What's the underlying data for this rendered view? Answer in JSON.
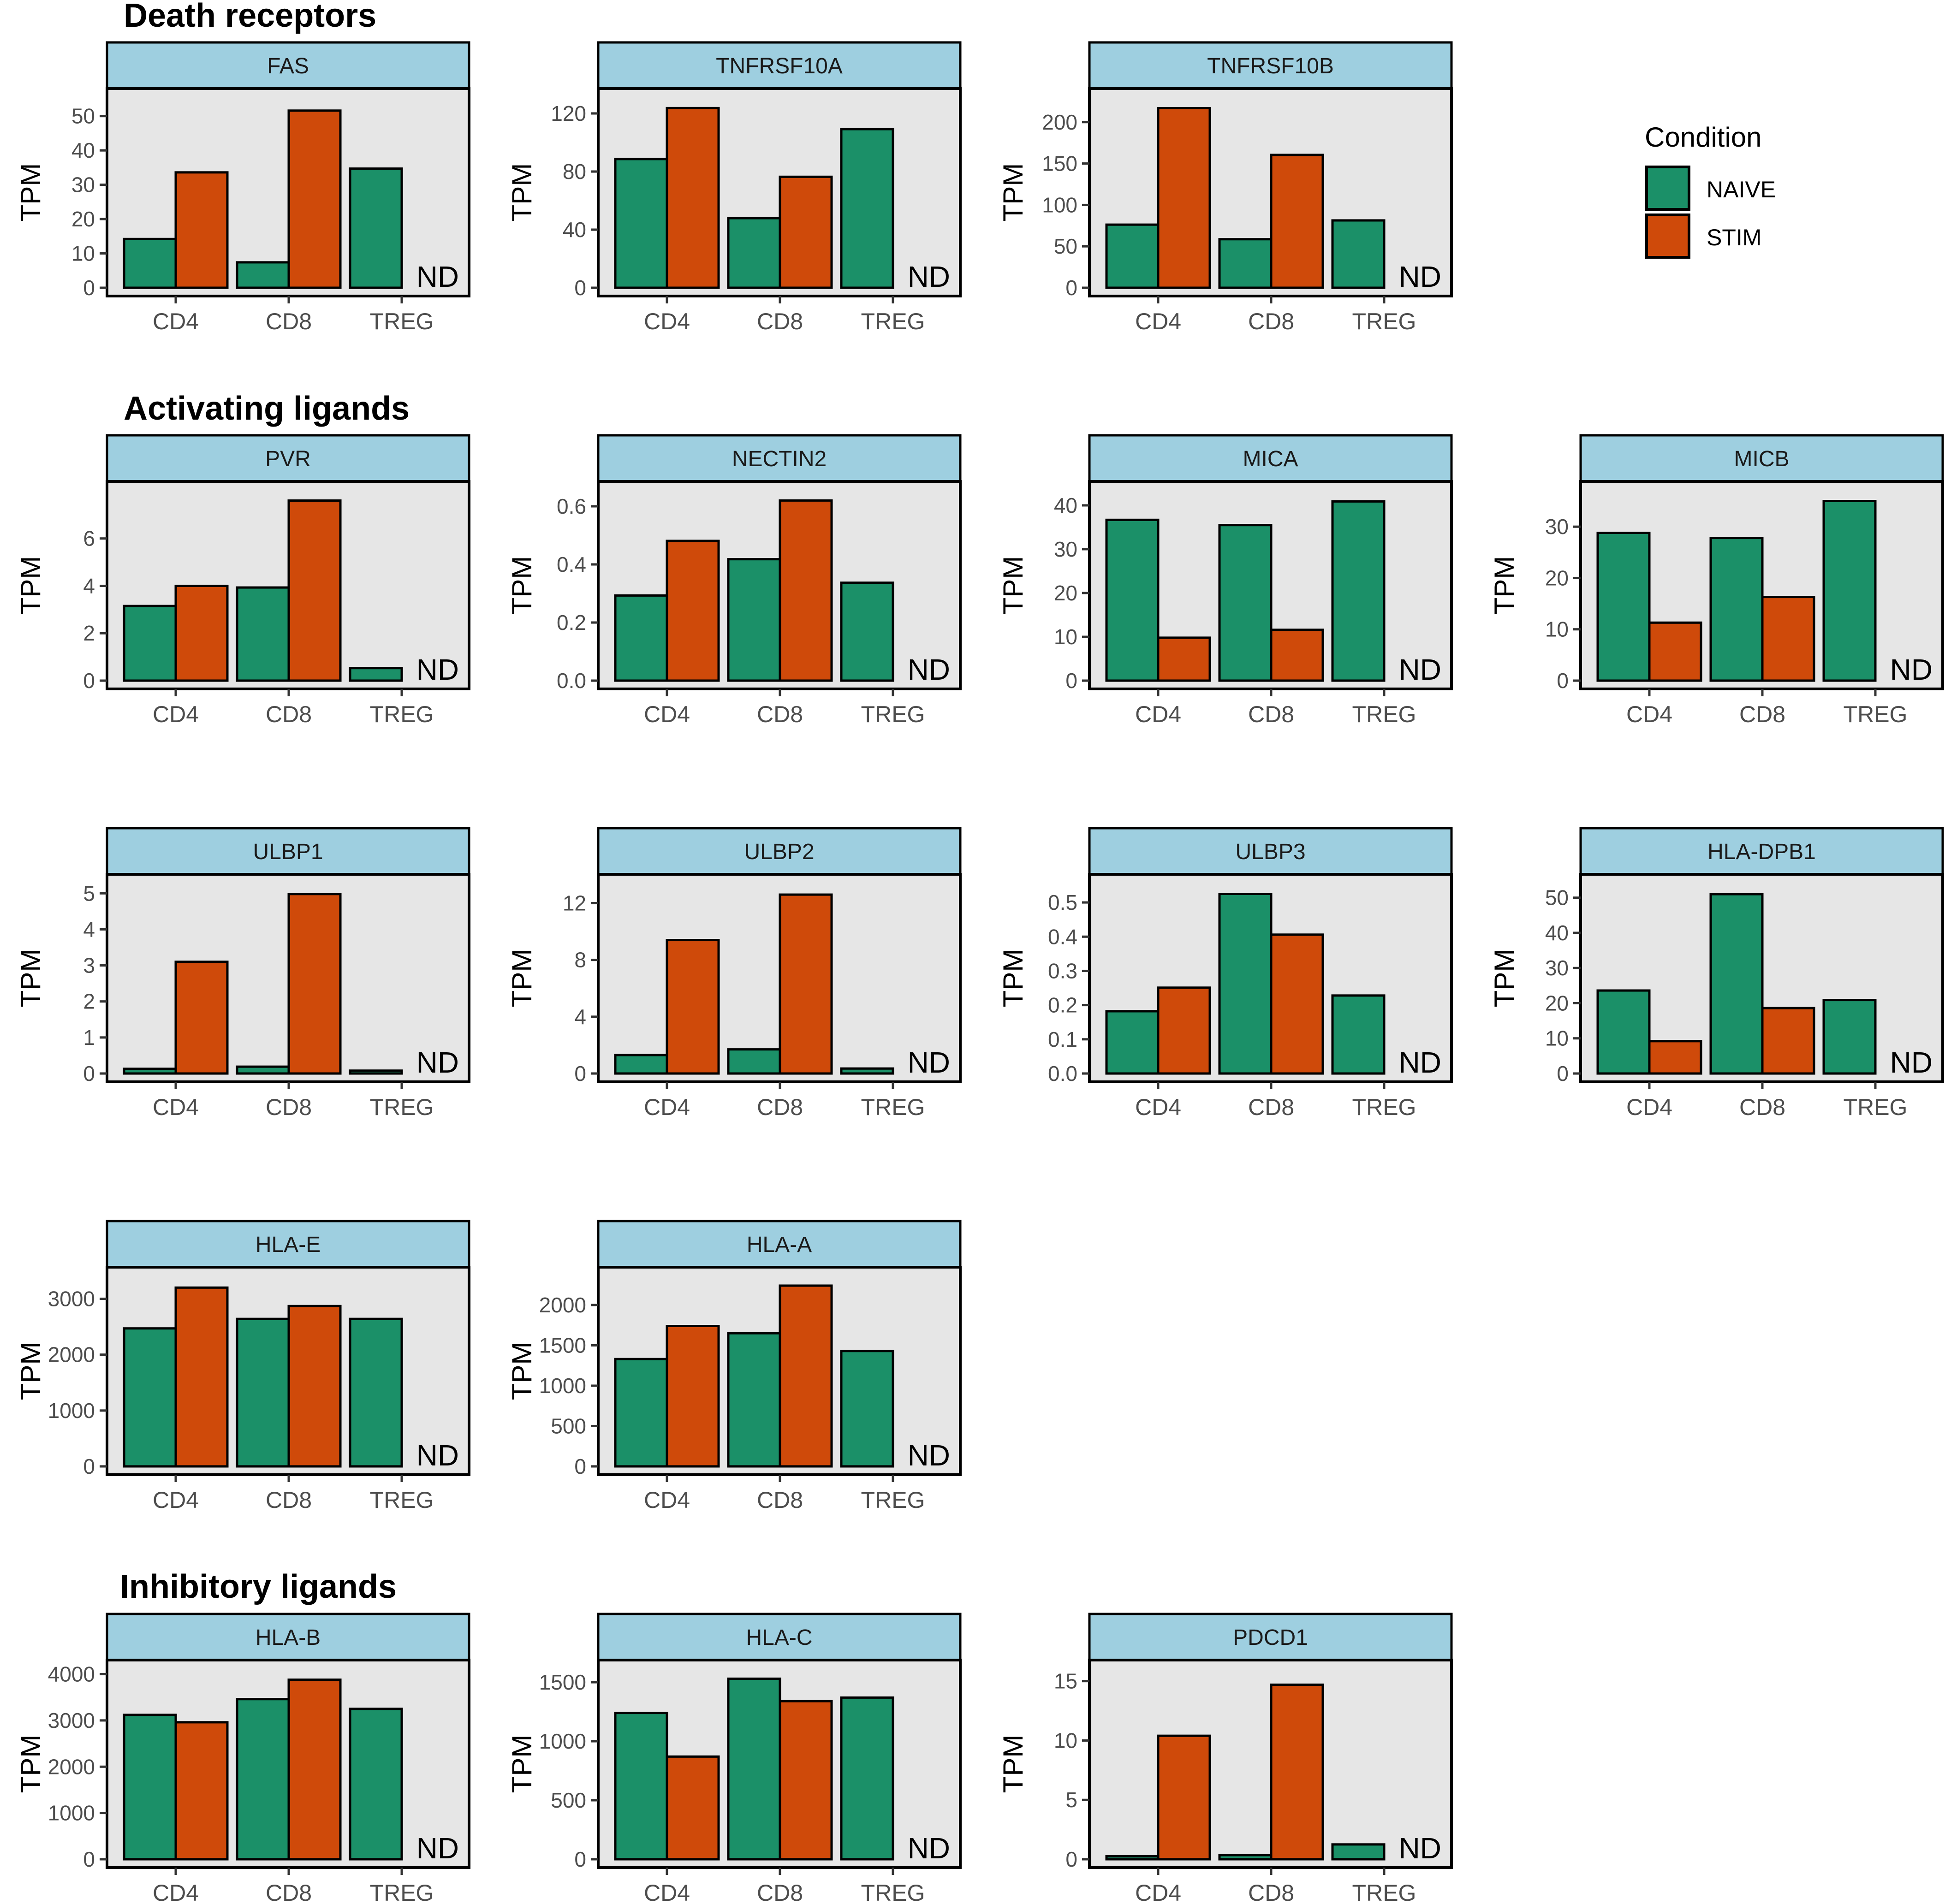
{
  "condition_colors": {
    "NAIVE": "#1b9068",
    "STIM": "#cf4a0a"
  },
  "strip_color": "#9ecfe0",
  "panel_bg": "#e6e6e6",
  "section_titles": [
    "Death receptors",
    "Activating ligands",
    "Inhibitory ligands"
  ],
  "legend": {
    "title": "Condition",
    "entries": [
      "NAIVE",
      "STIM"
    ]
  },
  "nd_label": "ND",
  "chart_data": [
    {
      "type": "bar",
      "title": "FAS",
      "ylabel": "TPM",
      "categories": [
        "CD4",
        "CD8",
        "TREG"
      ],
      "ylim": [
        0,
        55
      ],
      "yticks": [
        0,
        10,
        20,
        30,
        40,
        50
      ],
      "yticklabels": [
        "0",
        "10",
        "20",
        "30",
        "40",
        "50"
      ],
      "series": [
        {
          "name": "NAIVE",
          "values": [
            14.2,
            7.4,
            34.7
          ]
        },
        {
          "name": "STIM",
          "values": [
            33.6,
            51.6,
            null
          ]
        }
      ],
      "annotations": [
        "ND"
      ]
    },
    {
      "type": "bar",
      "title": "TNFRSF10A",
      "ylabel": "TPM",
      "categories": [
        "CD4",
        "CD8",
        "TREG"
      ],
      "ylim": [
        0,
        130
      ],
      "yticks": [
        0,
        40,
        80,
        120
      ],
      "yticklabels": [
        "0",
        "40",
        "80",
        "120"
      ],
      "series": [
        {
          "name": "NAIVE",
          "values": [
            88.6,
            47.9,
            109.2
          ]
        },
        {
          "name": "STIM",
          "values": [
            123.7,
            76.4,
            null
          ]
        }
      ],
      "annotations": [
        "ND"
      ]
    },
    {
      "type": "bar",
      "title": "TNFRSF10B",
      "ylabel": "TPM",
      "categories": [
        "CD4",
        "CD8",
        "TREG"
      ],
      "ylim": [
        0,
        228
      ],
      "yticks": [
        0,
        50,
        100,
        150,
        200
      ],
      "yticklabels": [
        "0",
        "50",
        "100",
        "150",
        "200"
      ],
      "series": [
        {
          "name": "NAIVE",
          "values": [
            76.2,
            58.6,
            81.3
          ]
        },
        {
          "name": "STIM",
          "values": [
            216.9,
            160.4,
            null
          ]
        }
      ],
      "annotations": [
        "ND"
      ]
    },
    {
      "type": "bar",
      "title": "PVR",
      "ylabel": "TPM",
      "categories": [
        "CD4",
        "CD8",
        "TREG"
      ],
      "ylim": [
        0,
        7.97
      ],
      "yticks": [
        0,
        2,
        4,
        6
      ],
      "yticklabels": [
        "0",
        "2",
        "4",
        "6"
      ],
      "series": [
        {
          "name": "NAIVE",
          "values": [
            3.15,
            3.93,
            0.53
          ]
        },
        {
          "name": "STIM",
          "values": [
            4.0,
            7.6,
            null
          ]
        }
      ],
      "annotations": [
        "ND"
      ]
    },
    {
      "type": "bar",
      "title": "NECTIN2",
      "ylabel": "TPM",
      "categories": [
        "CD4",
        "CD8",
        "TREG"
      ],
      "ylim": [
        0,
        0.65
      ],
      "yticks": [
        0,
        0.2,
        0.4,
        0.6
      ],
      "yticklabels": [
        "0.0",
        "0.2",
        "0.4",
        "0.6"
      ],
      "series": [
        {
          "name": "NAIVE",
          "values": [
            0.293,
            0.418,
            0.337
          ]
        },
        {
          "name": "STIM",
          "values": [
            0.481,
            0.62,
            null
          ]
        }
      ],
      "annotations": [
        "ND"
      ]
    },
    {
      "type": "bar",
      "title": "MICA",
      "ylabel": "TPM",
      "categories": [
        "CD4",
        "CD8",
        "TREG"
      ],
      "ylim": [
        0,
        43.1
      ],
      "yticks": [
        0,
        10,
        20,
        30,
        40
      ],
      "yticklabels": [
        "0",
        "10",
        "20",
        "30",
        "40"
      ],
      "series": [
        {
          "name": "NAIVE",
          "values": [
            36.7,
            35.5,
            40.9
          ]
        },
        {
          "name": "STIM",
          "values": [
            9.8,
            11.6,
            null
          ]
        }
      ],
      "annotations": [
        "ND"
      ]
    },
    {
      "type": "bar",
      "title": "MICB",
      "ylabel": "TPM",
      "categories": [
        "CD4",
        "CD8",
        "TREG"
      ],
      "ylim": [
        0,
        36.8
      ],
      "yticks": [
        0,
        10,
        20,
        30
      ],
      "yticklabels": [
        "0",
        "10",
        "20",
        "30"
      ],
      "series": [
        {
          "name": "NAIVE",
          "values": [
            28.8,
            27.8,
            35.0
          ]
        },
        {
          "name": "STIM",
          "values": [
            11.3,
            16.3,
            null
          ]
        }
      ],
      "annotations": [
        "ND"
      ]
    },
    {
      "type": "bar",
      "title": "ULBP1",
      "ylabel": "TPM",
      "categories": [
        "CD4",
        "CD8",
        "TREG"
      ],
      "ylim": [
        0,
        5.24
      ],
      "yticks": [
        0,
        1,
        2,
        3,
        4,
        5
      ],
      "yticklabels": [
        "0",
        "1",
        "2",
        "3",
        "4",
        "5"
      ],
      "series": [
        {
          "name": "NAIVE",
          "values": [
            0.13,
            0.19,
            0.08
          ]
        },
        {
          "name": "STIM",
          "values": [
            3.1,
            4.98,
            null
          ]
        }
      ],
      "annotations": [
        "ND"
      ]
    },
    {
      "type": "bar",
      "title": "ULBP2",
      "ylabel": "TPM",
      "categories": [
        "CD4",
        "CD8",
        "TREG"
      ],
      "ylim": [
        0,
        13.3
      ],
      "yticks": [
        0,
        4,
        8,
        12
      ],
      "yticklabels": [
        "0",
        "4",
        "8",
        "12"
      ],
      "series": [
        {
          "name": "NAIVE",
          "values": [
            1.3,
            1.7,
            0.35
          ]
        },
        {
          "name": "STIM",
          "values": [
            9.4,
            12.6,
            null
          ]
        }
      ],
      "annotations": [
        "ND"
      ]
    },
    {
      "type": "bar",
      "title": "ULBP3",
      "ylabel": "TPM",
      "categories": [
        "CD4",
        "CD8",
        "TREG"
      ],
      "ylim": [
        0,
        0.552
      ],
      "yticks": [
        0,
        0.1,
        0.2,
        0.3,
        0.4,
        0.5
      ],
      "yticklabels": [
        "0.0",
        "0.1",
        "0.2",
        "0.3",
        "0.4",
        "0.5"
      ],
      "series": [
        {
          "name": "NAIVE",
          "values": [
            0.182,
            0.525,
            0.228
          ]
        },
        {
          "name": "STIM",
          "values": [
            0.251,
            0.406,
            null
          ]
        }
      ],
      "annotations": [
        "ND"
      ]
    },
    {
      "type": "bar",
      "title": "HLA-DPB1",
      "ylabel": "TPM",
      "categories": [
        "CD4",
        "CD8",
        "TREG"
      ],
      "ylim": [
        0,
        53.7
      ],
      "yticks": [
        0,
        10,
        20,
        30,
        40,
        50
      ],
      "yticklabels": [
        "0",
        "10",
        "20",
        "30",
        "40",
        "50"
      ],
      "series": [
        {
          "name": "NAIVE",
          "values": [
            23.6,
            51.0,
            20.9
          ]
        },
        {
          "name": "STIM",
          "values": [
            9.2,
            18.6,
            null
          ]
        }
      ],
      "annotations": [
        "ND"
      ]
    },
    {
      "type": "bar",
      "title": "HLA-E",
      "ylabel": "TPM",
      "categories": [
        "CD4",
        "CD8",
        "TREG"
      ],
      "ylim": [
        0,
        3380
      ],
      "yticks": [
        0,
        1000,
        2000,
        3000
      ],
      "yticklabels": [
        "0",
        "1000",
        "2000",
        "3000"
      ],
      "series": [
        {
          "name": "NAIVE",
          "values": [
            2470,
            2640,
            2640
          ]
        },
        {
          "name": "STIM",
          "values": [
            3200,
            2870,
            null
          ]
        }
      ],
      "annotations": [
        "ND"
      ]
    },
    {
      "type": "bar",
      "title": "HLA-A",
      "ylabel": "TPM",
      "categories": [
        "CD4",
        "CD8",
        "TREG"
      ],
      "ylim": [
        0,
        2340
      ],
      "yticks": [
        0,
        500,
        1000,
        1500,
        2000
      ],
      "yticklabels": [
        "0",
        "500",
        "1000",
        "1500",
        "2000"
      ],
      "series": [
        {
          "name": "NAIVE",
          "values": [
            1330,
            1650,
            1430
          ]
        },
        {
          "name": "STIM",
          "values": [
            1740,
            2240,
            null
          ]
        }
      ],
      "annotations": [
        "ND"
      ]
    },
    {
      "type": "bar",
      "title": "HLA-B",
      "ylabel": "TPM",
      "categories": [
        "CD4",
        "CD8",
        "TREG"
      ],
      "ylim": [
        0,
        4080
      ],
      "yticks": [
        0,
        1000,
        2000,
        3000,
        4000
      ],
      "yticklabels": [
        "0",
        "1000",
        "2000",
        "3000",
        "4000"
      ],
      "series": [
        {
          "name": "NAIVE",
          "values": [
            3120,
            3460,
            3250
          ]
        },
        {
          "name": "STIM",
          "values": [
            2960,
            3880,
            null
          ]
        }
      ],
      "annotations": [
        "ND"
      ]
    },
    {
      "type": "bar",
      "title": "HLA-C",
      "ylabel": "TPM",
      "categories": [
        "CD4",
        "CD8",
        "TREG"
      ],
      "ylim": [
        0,
        1600
      ],
      "yticks": [
        0,
        500,
        1000,
        1500
      ],
      "yticklabels": [
        "0",
        "500",
        "1000",
        "1500"
      ],
      "series": [
        {
          "name": "NAIVE",
          "values": [
            1240,
            1530,
            1370
          ]
        },
        {
          "name": "STIM",
          "values": [
            870,
            1340,
            null
          ]
        }
      ],
      "annotations": [
        "ND"
      ]
    },
    {
      "type": "bar",
      "title": "PDCD1",
      "ylabel": "TPM",
      "categories": [
        "CD4",
        "CD8",
        "TREG"
      ],
      "ylim": [
        0,
        15.9
      ],
      "yticks": [
        0,
        5,
        10,
        15
      ],
      "yticklabels": [
        "0",
        "5",
        "10",
        "15"
      ],
      "series": [
        {
          "name": "NAIVE",
          "values": [
            0.25,
            0.35,
            1.25
          ]
        },
        {
          "name": "STIM",
          "values": [
            10.4,
            14.7,
            null
          ]
        }
      ],
      "annotations": [
        "ND"
      ]
    }
  ]
}
